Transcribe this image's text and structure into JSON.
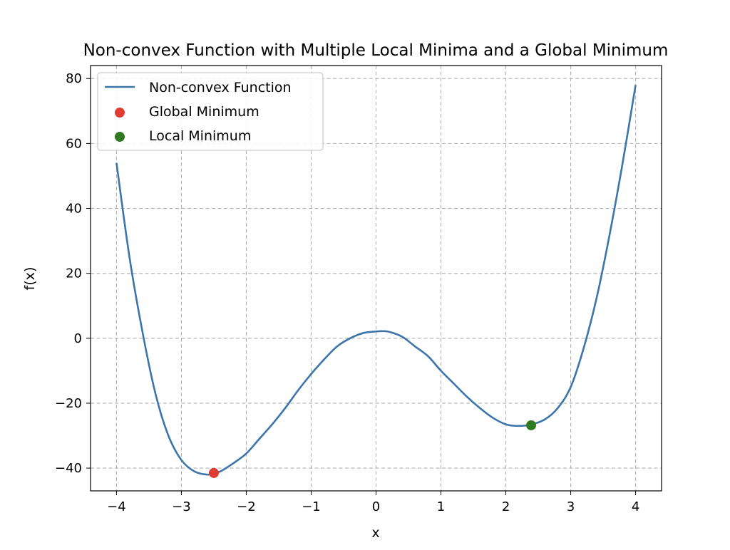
{
  "chart_data": {
    "type": "line",
    "title": "Non-convex Function with Multiple Local Minima and a Global Minimum",
    "xlabel": "x",
    "ylabel": "f(x)",
    "xlim": [
      -4.4,
      4.4
    ],
    "ylim": [
      -47,
      84
    ],
    "xticks": [
      -4,
      -3,
      -2,
      -1,
      0,
      1,
      2,
      3,
      4
    ],
    "yticks": [
      -40,
      -20,
      0,
      20,
      40,
      60,
      80
    ],
    "xtick_labels": [
      "−4",
      "−3",
      "−2",
      "−1",
      "0",
      "1",
      "2",
      "3",
      "4"
    ],
    "ytick_labels": [
      "−40",
      "−20",
      "0",
      "20",
      "40",
      "60",
      "80"
    ],
    "grid": true,
    "legend_position": "upper-left",
    "series": [
      {
        "name": "Non-convex Function",
        "kind": "line",
        "color": "#3d75aa",
        "x": [
          -4.0,
          -3.8,
          -3.6,
          -3.4,
          -3.2,
          -3.0,
          -2.8,
          -2.6,
          -2.5,
          -2.4,
          -2.2,
          -2.0,
          -1.8,
          -1.6,
          -1.4,
          -1.2,
          -1.0,
          -0.8,
          -0.6,
          -0.4,
          -0.2,
          0.0,
          0.1,
          0.2,
          0.4,
          0.6,
          0.8,
          1.0,
          1.2,
          1.4,
          1.6,
          1.8,
          2.0,
          2.2,
          2.4,
          2.6,
          2.8,
          3.0,
          3.2,
          3.4,
          3.6,
          3.8,
          4.0
        ],
        "y": [
          54,
          25,
          2,
          -17,
          -30,
          -37.5,
          -41,
          -42,
          -41.5,
          -41,
          -38.5,
          -35.5,
          -31,
          -26.5,
          -21.5,
          -16,
          -11,
          -6.5,
          -2.5,
          0,
          1.6,
          2.1,
          2.2,
          2,
          0.5,
          -2.5,
          -5.5,
          -10,
          -14,
          -18,
          -21.5,
          -24.5,
          -26.5,
          -27,
          -26.5,
          -25,
          -21.5,
          -15,
          -3,
          12.5,
          32,
          54,
          78
        ]
      },
      {
        "name": "Global Minimum",
        "kind": "scatter",
        "color": "#e03c31",
        "x": [
          -2.5
        ],
        "y": [
          -41.5
        ]
      },
      {
        "name": "Local Minimum",
        "kind": "scatter",
        "color": "#2e7b1f",
        "x": [
          2.39
        ],
        "y": [
          -26.8
        ]
      }
    ]
  }
}
